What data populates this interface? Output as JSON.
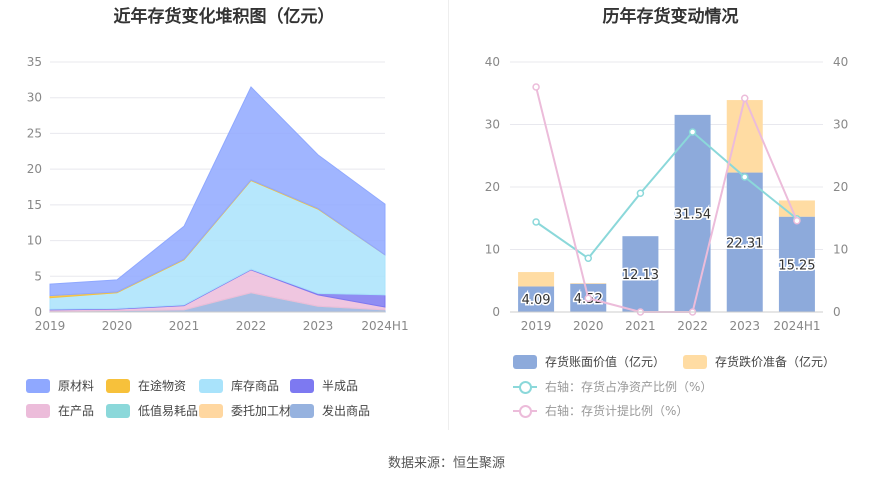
{
  "left": {
    "title": "近年存货变化堆积图（亿元）",
    "chart_data": {
      "type": "area",
      "stacked": true,
      "categories": [
        "2019",
        "2020",
        "2021",
        "2022",
        "2023",
        "2024H1"
      ],
      "ylim": [
        0,
        35
      ],
      "yticks": [
        0,
        5,
        10,
        15,
        20,
        25,
        30,
        35
      ],
      "grid": true,
      "legend_position": "bottom",
      "series": [
        {
          "name": "原材料",
          "color": "#8fa8ff",
          "values": [
            1.6,
            1.7,
            4.6,
            13.0,
            7.5,
            7.1
          ]
        },
        {
          "name": "在途物资",
          "color": "#f7c13b",
          "values": [
            0.3,
            0.1,
            0.1,
            0.1,
            0.1,
            0.0
          ]
        },
        {
          "name": "库存商品",
          "color": "#a9e3fb",
          "values": [
            1.6,
            2.2,
            6.3,
            12.4,
            11.8,
            5.6
          ]
        },
        {
          "name": "半成品",
          "color": "#7d79f1",
          "values": [
            0.1,
            0.1,
            0.1,
            0.1,
            0.2,
            1.7
          ]
        },
        {
          "name": "在产品",
          "color": "#ecbcda",
          "values": [
            0.2,
            0.2,
            0.6,
            3.2,
            1.6,
            0.4
          ]
        },
        {
          "name": "低值易耗品",
          "color": "#8bd8da",
          "values": [
            0.0,
            0.0,
            0.0,
            0.0,
            0.0,
            0.0
          ]
        },
        {
          "name": "委托加工材料",
          "color": "#ffd7a0",
          "values": [
            0.0,
            0.0,
            0.0,
            0.0,
            0.0,
            0.0
          ]
        },
        {
          "name": "发出商品",
          "color": "#96b2df",
          "values": [
            0.1,
            0.2,
            0.3,
            2.7,
            0.8,
            0.3
          ]
        }
      ]
    }
  },
  "right": {
    "title": "历年存货变动情况",
    "chart_data": {
      "type": "bar",
      "stacked": true,
      "categories": [
        "2019",
        "2020",
        "2021",
        "2022",
        "2023",
        "2024H1"
      ],
      "ylim": [
        0,
        40
      ],
      "yticks": [
        0,
        10,
        20,
        30,
        40
      ],
      "y2lim": [
        0,
        40
      ],
      "y2ticks": [
        0,
        10,
        20,
        30,
        40
      ],
      "grid": true,
      "legend_position": "bottom",
      "series": [
        {
          "name": "存货账面价值（亿元）",
          "type": "bar",
          "color": "#8daadb",
          "values": [
            4.09,
            4.52,
            12.13,
            31.54,
            22.31,
            15.25
          ],
          "labels": [
            "4.09",
            "4.52",
            "12.13",
            "31.54",
            "22.31",
            "15.25"
          ]
        },
        {
          "name": "存货跌价准备（亿元）",
          "type": "bar",
          "color": "#ffdca3",
          "values": [
            2.3,
            0.1,
            0.0,
            0.0,
            11.6,
            2.6
          ]
        },
        {
          "name": "右轴：存货占净资产比例（%）",
          "type": "line",
          "axis": "right",
          "color": "#8bd8da",
          "values": [
            14.4,
            8.6,
            19.0,
            28.8,
            21.6,
            14.9
          ]
        },
        {
          "name": "右轴：存货计提比例（%）",
          "type": "line",
          "axis": "right",
          "color": "#ecbcda",
          "values": [
            36.0,
            2.2,
            0.0,
            0.0,
            34.2,
            14.6
          ]
        }
      ]
    }
  },
  "footer": "数据来源：恒生聚源"
}
